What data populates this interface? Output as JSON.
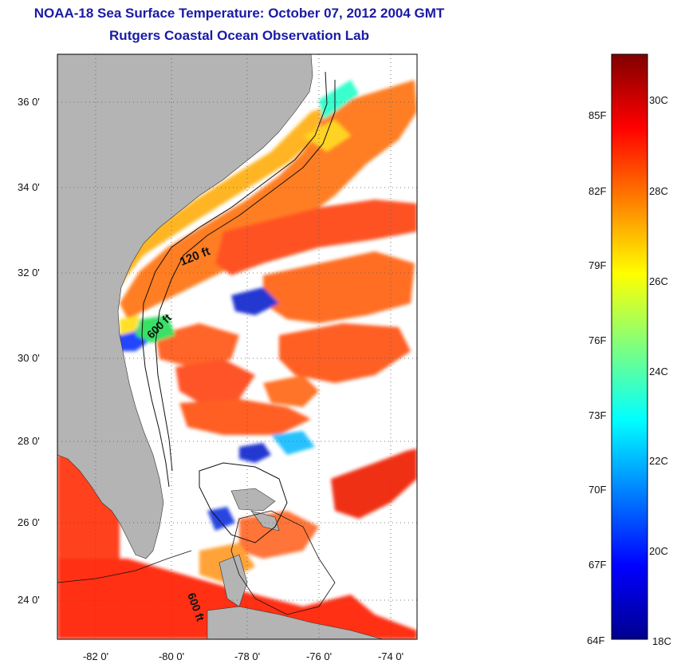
{
  "header": {
    "title": "NOAA-18 Sea Surface Temperature:  October 07, 2012 2004 GMT",
    "subtitle": "Rutgers Coastal Ocean Observation Lab"
  },
  "map": {
    "lat_labels": [
      "36 0'",
      "34 0'",
      "32 0'",
      "30 0'",
      "28 0'",
      "26 0'",
      "24 0'"
    ],
    "lon_labels": [
      "-82 0'",
      "-80 0'",
      "-78 0'",
      "-76 0'",
      "-74 0'"
    ],
    "contour_labels": [
      "120 ft",
      "600 ft",
      "600 ft"
    ],
    "land_color": "#b4b4b4",
    "cloud_color": "#ffffff"
  },
  "colorbar": {
    "fahrenheit_labels": [
      "85F",
      "82F",
      "79F",
      "76F",
      "73F",
      "70F",
      "67F",
      "64F"
    ],
    "celsius_labels": [
      "30C",
      "28C",
      "26C",
      "24C",
      "22C",
      "20C",
      "18C"
    ],
    "colormap": "jet",
    "min_color": "#00008f",
    "max_color": "#800000"
  }
}
